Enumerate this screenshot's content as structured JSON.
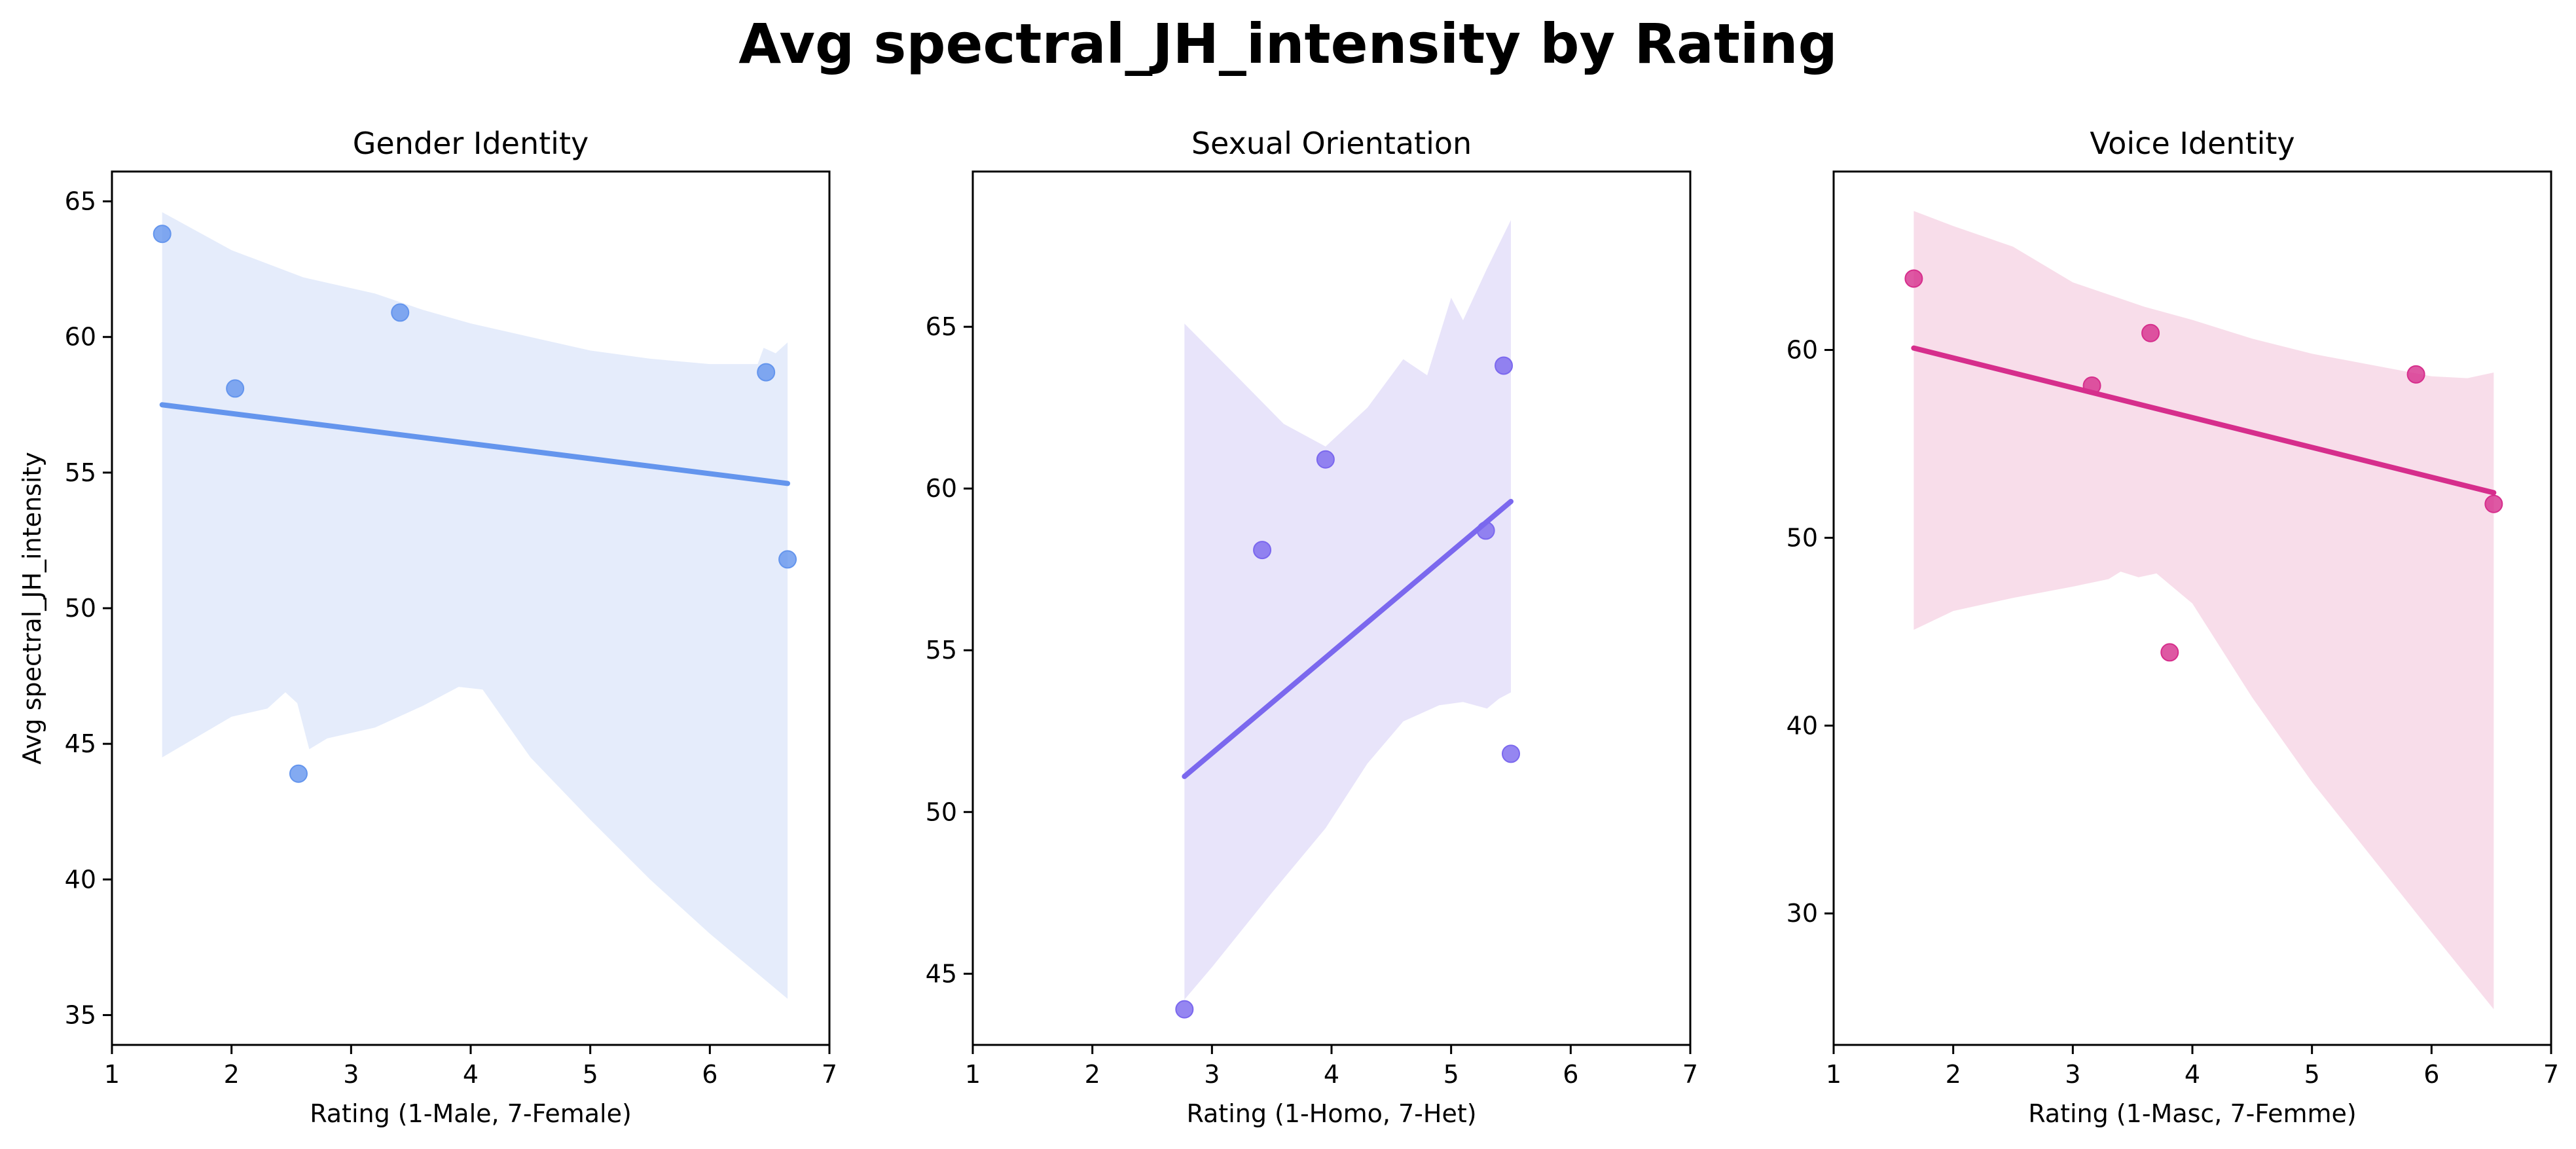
{
  "figure": {
    "title": "Avg spectral_JH_intensity by Rating"
  },
  "chart_data": [
    {
      "type": "scatter",
      "title": "Gender Identity",
      "xlabel": "Rating (1-Male, 7-Female)",
      "ylabel": "Avg spectral_JH_intensity",
      "xlim": [
        1,
        7
      ],
      "ylim": [
        33.9,
        66.1
      ],
      "xticks": [
        1,
        2,
        3,
        4,
        5,
        6,
        7
      ],
      "yticks": [
        35,
        40,
        45,
        50,
        55,
        60,
        65
      ],
      "color": "#6495ED",
      "band_color": "#E5ECFB",
      "points": [
        {
          "x": 1.42,
          "y": 63.8
        },
        {
          "x": 2.03,
          "y": 58.1
        },
        {
          "x": 2.56,
          "y": 43.9
        },
        {
          "x": 3.41,
          "y": 60.9
        },
        {
          "x": 6.47,
          "y": 58.7
        },
        {
          "x": 6.65,
          "y": 51.8
        }
      ],
      "fit": [
        {
          "x": 1.42,
          "y": 57.5
        },
        {
          "x": 6.65,
          "y": 54.6
        }
      ],
      "band": {
        "upper": [
          [
            1.42,
            64.6
          ],
          [
            2.0,
            63.2
          ],
          [
            2.6,
            62.2
          ],
          [
            3.2,
            61.6
          ],
          [
            3.6,
            61.0
          ],
          [
            4.0,
            60.5
          ],
          [
            4.5,
            60.0
          ],
          [
            5.0,
            59.5
          ],
          [
            5.5,
            59.2
          ],
          [
            6.0,
            59.0
          ],
          [
            6.4,
            59.0
          ],
          [
            6.45,
            59.6
          ],
          [
            6.55,
            59.4
          ],
          [
            6.65,
            59.8
          ]
        ],
        "lower": [
          [
            1.42,
            44.5
          ],
          [
            2.0,
            46.0
          ],
          [
            2.3,
            46.3
          ],
          [
            2.45,
            46.9
          ],
          [
            2.55,
            46.5
          ],
          [
            2.65,
            44.8
          ],
          [
            2.8,
            45.2
          ],
          [
            3.2,
            45.6
          ],
          [
            3.6,
            46.4
          ],
          [
            3.9,
            47.1
          ],
          [
            4.1,
            47.0
          ],
          [
            4.5,
            44.5
          ],
          [
            5.0,
            42.2
          ],
          [
            5.5,
            40.0
          ],
          [
            6.0,
            38.0
          ],
          [
            6.65,
            35.6
          ]
        ]
      }
    },
    {
      "type": "scatter",
      "title": "Sexual Orientation",
      "xlabel": "Rating (1-Homo, 7-Het)",
      "ylabel": "",
      "xlim": [
        1,
        7
      ],
      "ylim": [
        42.8,
        69.8
      ],
      "xticks": [
        1,
        2,
        3,
        4,
        5,
        6,
        7
      ],
      "yticks": [
        45,
        50,
        55,
        60,
        65
      ],
      "color": "#7B68EE",
      "band_color": "#E8E4FA",
      "points": [
        {
          "x": 2.77,
          "y": 43.9
        },
        {
          "x": 3.42,
          "y": 58.1
        },
        {
          "x": 3.95,
          "y": 60.9
        },
        {
          "x": 5.29,
          "y": 58.7
        },
        {
          "x": 5.44,
          "y": 63.8
        },
        {
          "x": 5.5,
          "y": 51.8
        }
      ],
      "fit": [
        {
          "x": 2.77,
          "y": 51.1
        },
        {
          "x": 5.5,
          "y": 59.6
        }
      ],
      "band": {
        "upper": [
          [
            2.77,
            65.1
          ],
          [
            3.2,
            63.5
          ],
          [
            3.6,
            62.0
          ],
          [
            3.95,
            61.3
          ],
          [
            4.3,
            62.5
          ],
          [
            4.6,
            64.0
          ],
          [
            4.8,
            63.5
          ],
          [
            5.0,
            65.9
          ],
          [
            5.1,
            65.2
          ],
          [
            5.3,
            66.8
          ],
          [
            5.5,
            68.3
          ]
        ],
        "lower": [
          [
            2.77,
            44.2
          ],
          [
            3.0,
            45.2
          ],
          [
            3.5,
            47.5
          ],
          [
            3.95,
            49.5
          ],
          [
            4.3,
            51.5
          ],
          [
            4.6,
            52.8
          ],
          [
            4.9,
            53.3
          ],
          [
            5.1,
            53.4
          ],
          [
            5.3,
            53.2
          ],
          [
            5.4,
            53.5
          ],
          [
            5.5,
            53.7
          ]
        ]
      }
    },
    {
      "type": "scatter",
      "title": "Voice Identity",
      "xlabel": "Rating (1-Masc, 7-Femme)",
      "ylabel": "",
      "xlim": [
        1,
        7
      ],
      "ylim": [
        23.0,
        69.5
      ],
      "xticks": [
        1,
        2,
        3,
        4,
        5,
        6,
        7
      ],
      "yticks": [
        30,
        40,
        50,
        60
      ],
      "color": "#D62E8C",
      "band_color": "#F8DDEA",
      "points": [
        {
          "x": 1.67,
          "y": 63.8
        },
        {
          "x": 3.16,
          "y": 58.1
        },
        {
          "x": 3.65,
          "y": 60.9
        },
        {
          "x": 3.81,
          "y": 43.9
        },
        {
          "x": 5.87,
          "y": 58.7
        },
        {
          "x": 6.52,
          "y": 51.8
        }
      ],
      "fit": [
        {
          "x": 1.67,
          "y": 60.1
        },
        {
          "x": 6.52,
          "y": 52.4
        }
      ],
      "band": {
        "upper": [
          [
            1.67,
            67.4
          ],
          [
            2.0,
            66.6
          ],
          [
            2.5,
            65.5
          ],
          [
            3.0,
            63.6
          ],
          [
            3.6,
            62.3
          ],
          [
            4.0,
            61.6
          ],
          [
            4.5,
            60.6
          ],
          [
            5.0,
            59.8
          ],
          [
            5.5,
            59.2
          ],
          [
            6.0,
            58.6
          ],
          [
            6.3,
            58.5
          ],
          [
            6.52,
            58.8
          ]
        ],
        "lower": [
          [
            1.67,
            45.1
          ],
          [
            2.0,
            46.1
          ],
          [
            2.5,
            46.8
          ],
          [
            3.0,
            47.4
          ],
          [
            3.3,
            47.8
          ],
          [
            3.4,
            48.2
          ],
          [
            3.55,
            47.9
          ],
          [
            3.7,
            48.1
          ],
          [
            4.0,
            46.5
          ],
          [
            4.5,
            41.5
          ],
          [
            5.0,
            37.0
          ],
          [
            5.5,
            33.0
          ],
          [
            6.0,
            29.0
          ],
          [
            6.52,
            24.9
          ]
        ]
      }
    }
  ]
}
